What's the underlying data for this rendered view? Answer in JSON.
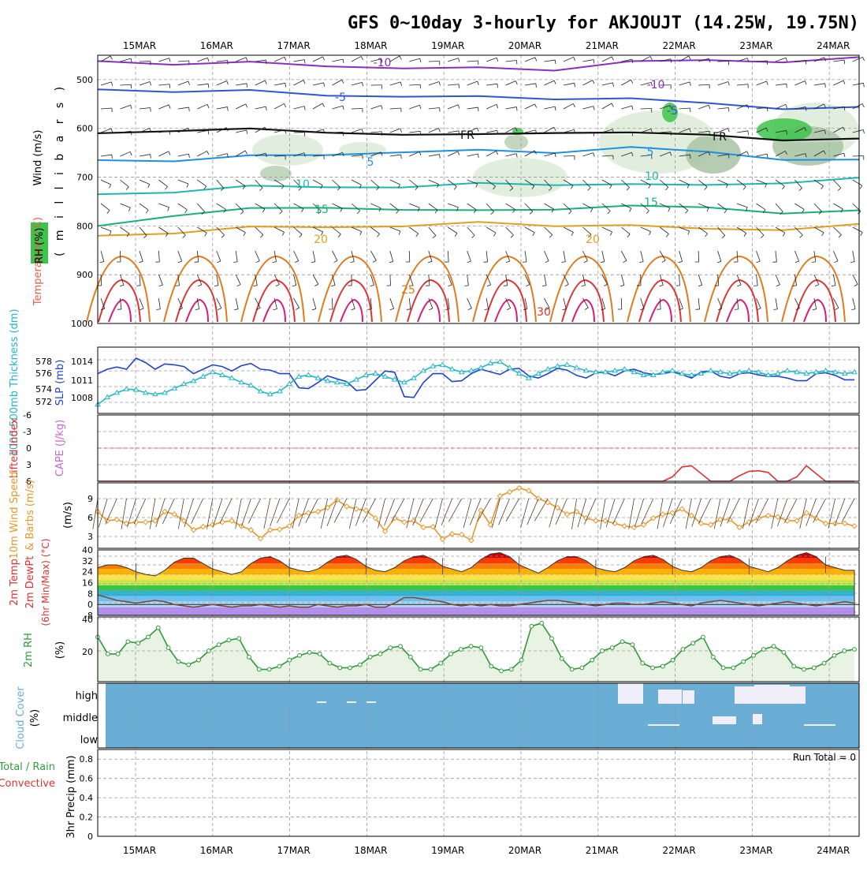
{
  "title": "GFS 0~10day 3-hourly for AKJOUJT (14.25W, 19.75N)",
  "dates": [
    "15MAR",
    "16MAR",
    "17MAR",
    "18MAR",
    "19MAR",
    "20MAR",
    "21MAR",
    "22MAR",
    "23MAR",
    "24MAR"
  ],
  "colors": {
    "temp_neg10": "#8a2fbf",
    "temp_neg5": "#2d56d6",
    "freezing": "#111111",
    "temp_5": "#1e90e0",
    "temp_10": "#1fb8b0",
    "temp_15": "#19b07a",
    "temp_20": "#e0a020",
    "temp_25": "#e07a1a",
    "temp_30": "#dd3333",
    "temp_35": "#d81b7a",
    "rh_green": "#3cc44a",
    "rh_light": "#dcebd8",
    "slp": "#1f45c8",
    "thickness": "#22b6c8",
    "wind10": "#e8982a",
    "rh2m": "#2f9a3a",
    "cloud": "#6aaed6",
    "cape": "#cc66cc",
    "lifted": "#dd3333"
  },
  "chart_data": [
    {
      "type": "line",
      "panel": "upper-air",
      "ylabel_parts": [
        "Wind (m/s)",
        "Temperature (°C)",
        "RH (%)"
      ],
      "y_axis_label": "( m i l l i b a r s )",
      "ylim": [
        1000,
        450
      ],
      "yticks": [
        500,
        600,
        700,
        800,
        900,
        1000
      ],
      "series": [
        {
          "name": "-10",
          "level_mb": [
            462,
            466,
            468,
            470,
            476,
            479,
            477,
            464,
            462,
            460,
            458
          ]
        },
        {
          "name": "-5",
          "level_mb": [
            520,
            522,
            526,
            530,
            534,
            538,
            536,
            540,
            550,
            556,
            560
          ]
        },
        {
          "name": "FR",
          "level_mb": [
            610,
            602,
            605,
            606,
            612,
            616,
            605,
            610,
            615,
            620,
            625
          ]
        },
        {
          "name": "5",
          "level_mb": [
            665,
            664,
            660,
            652,
            648,
            648,
            646,
            640,
            650,
            660,
            668
          ]
        },
        {
          "name": "10",
          "level_mb": [
            735,
            728,
            722,
            718,
            720,
            716,
            712,
            716,
            718,
            708,
            705
          ]
        },
        {
          "name": "15",
          "level_mb": [
            800,
            776,
            768,
            760,
            766,
            772,
            762,
            760,
            764,
            770,
            772
          ]
        },
        {
          "name": "20",
          "level_mb": [
            820,
            812,
            806,
            800,
            800,
            796,
            796,
            800,
            808,
            804,
            800
          ]
        }
      ],
      "labels": [
        "-10",
        "-10",
        "-5",
        "-5",
        "FR",
        "FR",
        "5",
        "5",
        "10",
        "10",
        "15",
        "15",
        "20",
        "20",
        "25",
        "30"
      ]
    },
    {
      "type": "line",
      "panel": "thickness-slp",
      "ylabel_parts": [
        "1000-500mb Thickness (dm)",
        "SLP (mb)"
      ],
      "thickness_ticks": [
        "578",
        "576",
        "574",
        "572"
      ],
      "slp_ticks": [
        "1014",
        "1011",
        "1008"
      ],
      "series": [
        {
          "name": "SLP (mb)",
          "values": [
            1012,
            1013,
            1013.5,
            1013,
            1015.5,
            1014.5,
            1013,
            1014.2,
            1014,
            1013.6,
            1012,
            1013,
            1014,
            1013.6,
            1012.6,
            1013.8,
            1014.3,
            1013,
            1012.8,
            1012,
            1012,
            1008.8,
            1008.6,
            1010,
            1011.5,
            1010.8,
            1010.2,
            1008.2,
            1008.4,
            1010.5,
            1012.6,
            1012.3,
            1006.8,
            1006.6,
            1010,
            1012,
            1012,
            1010.2,
            1010.4,
            1012,
            1013,
            1012.4,
            1011.8,
            1013,
            1013.2,
            1011.5,
            1011,
            1012,
            1013.2,
            1012.8,
            1011.6,
            1011,
            1012.2,
            1012.3,
            1011.5,
            1012.6,
            1013,
            1012.2,
            1011.8,
            1012,
            1012.4,
            1011.8,
            1011,
            1012.4,
            1012.6,
            1011.4,
            1011,
            1012,
            1012.2,
            1011.7,
            1011.4,
            1011.4,
            1011,
            1010.4,
            1010.4,
            1012,
            1012.2,
            1011.6,
            1010.6,
            1010.6
          ]
        },
        {
          "name": "1000-500mb Thickness (dm)",
          "values": [
            571.2,
            572.2,
            572.8,
            573.3,
            573.2,
            572.8,
            572.6,
            572.8,
            573.4,
            574,
            574.4,
            575,
            575.6,
            575.2,
            574.8,
            574.2,
            573.8,
            573,
            572.6,
            573,
            574,
            575,
            575.2,
            574.8,
            574.4,
            574.2,
            574,
            574.6,
            575.2,
            575.4,
            575,
            574.6,
            574.2,
            574.8,
            575.8,
            576.4,
            576.6,
            576,
            575.6,
            575.8,
            576.2,
            576.8,
            577,
            576.2,
            575.4,
            574.8,
            575.4,
            576,
            576.4,
            576.6,
            576.2,
            575.8,
            575.6,
            575.6,
            575.8,
            576,
            575.6,
            575.2,
            575.2,
            575.6,
            575.8,
            575.4,
            575.2,
            575.4,
            575.8,
            575.6,
            575.4,
            575.6,
            575.8,
            575.6,
            575.2,
            575.4,
            575.8,
            575.6,
            575.4,
            575.6,
            575.8,
            575.6,
            575.4,
            575.6
          ]
        }
      ]
    },
    {
      "type": "line",
      "panel": "cape-li",
      "ylabel_parts": [
        "Lifted Index",
        "CAPE (J/kg)"
      ],
      "yticks": [
        "-6",
        "-3",
        "0",
        "3",
        "6"
      ],
      "series": [
        {
          "name": "Lifted Index",
          "values": [
            6,
            6,
            6,
            6,
            6,
            6,
            6,
            6,
            6,
            6,
            6,
            6,
            6,
            6,
            6,
            6,
            6,
            6,
            6,
            6,
            6,
            6,
            6,
            6,
            6,
            6,
            6,
            6,
            6,
            6,
            6,
            6,
            6,
            6,
            6,
            6,
            6,
            6,
            6,
            6,
            6,
            6,
            6,
            6,
            6,
            6,
            6,
            6,
            6,
            6,
            6,
            6,
            6,
            6,
            6,
            6,
            6,
            6,
            6,
            6,
            5.2,
            3.4,
            3.2,
            4.6,
            6,
            6,
            6,
            5,
            4.2,
            4.1,
            4.4,
            6,
            6,
            5.2,
            3.2,
            4.6,
            6,
            6,
            6,
            6
          ]
        }
      ]
    },
    {
      "type": "line",
      "panel": "wind10m",
      "ylabel_parts": [
        "10m Wind Speed",
        "& Barbs (m/s)"
      ],
      "yticks": [
        "9",
        "6",
        "3"
      ],
      "series": [
        {
          "name": "10m Wind Speed",
          "values": [
            6.6,
            5.2,
            5.4,
            4.8,
            5.0,
            5.0,
            5.2,
            6.6,
            6.2,
            5.2,
            3.8,
            4.3,
            4.6,
            5.0,
            5.2,
            4.4,
            3.8,
            2.5,
            3.8,
            3.9,
            4.4,
            6.0,
            6.4,
            6.6,
            7.2,
            8.4,
            7.4,
            7.0,
            6.8,
            5.6,
            3.6,
            5.6,
            5.0,
            5.2,
            4.2,
            4.3,
            2.4,
            3.2,
            3.1,
            2.2,
            6.8,
            4.6,
            9.0,
            9.6,
            10.2,
            9.8,
            8.6,
            8.0,
            7.2,
            6.2,
            6.6,
            5.6,
            5.2,
            5.2,
            4.8,
            4.4,
            4.2,
            4.6,
            5.6,
            6.2,
            6.4,
            7.0,
            6.0,
            4.8,
            4.6,
            5.4,
            5.4,
            4.2,
            5.0,
            5.6,
            6.0,
            5.8,
            5.2,
            5.2,
            6.4,
            5.6,
            4.8,
            4.8,
            4.8,
            4.4
          ]
        }
      ]
    },
    {
      "type": "area",
      "panel": "temp2m",
      "ylabel_parts": [
        "2m Temp",
        "2m DewPt",
        "(6hr Min/Max) (°C)"
      ],
      "yticks": [
        "40",
        "32",
        "24",
        "16",
        "8",
        "0",
        "-8"
      ],
      "series": [
        {
          "name": "2m Temp",
          "values": [
            27,
            29,
            29,
            27,
            24,
            22,
            21,
            25,
            31,
            34,
            34,
            30,
            26,
            24,
            22,
            24,
            30,
            34,
            35,
            32,
            27,
            25,
            24,
            26,
            31,
            35,
            36,
            33,
            28,
            25,
            24,
            27,
            32,
            35,
            36,
            33,
            28,
            26,
            24,
            27,
            33,
            37,
            38,
            35,
            29,
            26,
            23,
            27,
            32,
            35,
            35,
            32,
            27,
            25,
            24,
            27,
            32,
            35,
            36,
            33,
            28,
            25,
            24,
            27,
            32,
            35,
            36,
            33,
            28,
            26,
            24,
            27,
            32,
            36,
            38,
            35,
            29,
            27,
            25,
            25
          ]
        },
        {
          "name": "2m DewPt",
          "values": [
            7,
            5,
            3,
            2,
            1,
            2,
            3,
            2,
            0,
            -1,
            -2,
            -1,
            0,
            -1,
            -2,
            -1,
            -1,
            0,
            -1,
            -2,
            -1,
            -2,
            -2,
            0,
            -1,
            -2,
            -1,
            -1,
            0,
            -2,
            -2,
            1,
            5,
            5,
            4,
            3,
            2,
            0,
            -1,
            0,
            -1,
            0,
            -1,
            -1,
            0,
            1,
            2,
            3,
            3,
            2,
            1,
            0,
            -1,
            0,
            1,
            1,
            0,
            0,
            1,
            2,
            1,
            0,
            -1,
            1,
            2,
            3,
            2,
            1,
            0,
            -1,
            0,
            1,
            2,
            1,
            0,
            -1,
            0,
            1,
            2,
            1
          ]
        }
      ]
    },
    {
      "type": "area",
      "panel": "rh2m",
      "ylabel_parts": [
        "2m RH",
        "(%)"
      ],
      "yticks": [
        "40",
        "20"
      ],
      "series": [
        {
          "name": "2m RH",
          "values": [
            29,
            18,
            18,
            26,
            25,
            29,
            35,
            22,
            13,
            11,
            14,
            20,
            24,
            27,
            28,
            16,
            8,
            8,
            10,
            14,
            17,
            19,
            18,
            12,
            9,
            9,
            11,
            16,
            18,
            22,
            23,
            16,
            8,
            8,
            12,
            18,
            21,
            23,
            22,
            10,
            7,
            8,
            14,
            36,
            38,
            28,
            15,
            8,
            9,
            14,
            20,
            22,
            26,
            24,
            12,
            9,
            10,
            14,
            21,
            25,
            29,
            16,
            9,
            9,
            13,
            17,
            21,
            23,
            19,
            10,
            8,
            9,
            12,
            17,
            20,
            21
          ]
        }
      ]
    },
    {
      "type": "heatmap",
      "panel": "cloud",
      "ylabel_parts": [
        "Cloud Cover",
        "(%)"
      ],
      "yticks": [
        "high",
        "middle",
        "low"
      ]
    },
    {
      "type": "bar",
      "panel": "precip",
      "ylabel_parts": [
        "3hr Precip (mm)",
        "Total / Rain",
        "Convective"
      ],
      "yticks": [
        "0.8",
        "0.6",
        "0.4",
        "0.2",
        "0"
      ],
      "ylim": [
        0,
        0.9
      ],
      "run_total": "Run Total = 0",
      "values": []
    }
  ]
}
